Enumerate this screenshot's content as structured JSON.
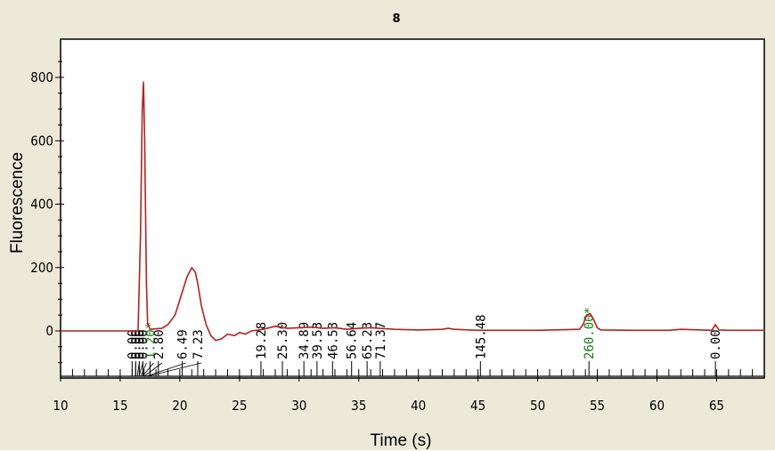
{
  "chart_data": {
    "type": "line",
    "title": "8",
    "xlabel": "Time (s)",
    "ylabel": "Fluorescence",
    "xlim": [
      10,
      69
    ],
    "ylim": [
      -150,
      900
    ],
    "x_ticks": [
      10,
      15,
      20,
      25,
      30,
      35,
      40,
      45,
      50,
      55,
      60,
      65
    ],
    "y_ticks": [
      0,
      200,
      400,
      600,
      800
    ],
    "grid": false,
    "line_color": "#b22222",
    "series": [
      {
        "x": [
          10,
          14.5,
          16.5,
          16.7,
          16.85,
          16.95,
          17.05,
          17.2,
          17.3,
          17.5,
          18.5,
          19.0,
          19.6,
          20.1,
          20.6,
          21.0,
          21.3,
          21.5,
          21.8,
          22.2,
          22.6,
          23.0,
          23.5,
          24.0,
          24.6,
          25.0,
          25.5,
          26.0,
          27.0,
          28.0,
          29.0,
          30.0,
          31.0,
          32.0,
          33.0,
          34.0,
          35.0,
          36.0,
          38.0,
          40.0,
          42.0,
          42.5,
          43.0,
          45.0,
          50.0,
          53.5,
          53.8,
          54.1,
          54.4,
          54.7,
          55.0,
          55.3,
          58.0,
          61.0,
          62.0,
          64.6,
          64.9,
          65.2,
          66.0,
          69.0
        ],
        "y": [
          0,
          0,
          0,
          300,
          700,
          785,
          600,
          150,
          25,
          5,
          8,
          20,
          50,
          110,
          170,
          200,
          185,
          150,
          80,
          20,
          -15,
          -30,
          -25,
          -10,
          -15,
          -5,
          -10,
          0,
          5,
          15,
          8,
          10,
          12,
          8,
          10,
          5,
          8,
          10,
          5,
          3,
          5,
          8,
          5,
          2,
          2,
          5,
          20,
          50,
          55,
          35,
          10,
          3,
          2,
          2,
          5,
          2,
          20,
          3,
          2,
          2
        ]
      }
    ],
    "annotations": [
      {
        "label": "0.00",
        "x": 16.0,
        "color": "#000000"
      },
      {
        "label": "0.00",
        "x": 16.3,
        "color": "#000000"
      },
      {
        "label": "0.00",
        "x": 16.6,
        "color": "#000000"
      },
      {
        "label": "0.00",
        "x": 16.9,
        "color": "#000000"
      },
      {
        "label": "1.20*",
        "x": 17.5,
        "color": "#1a7a1a"
      },
      {
        "label": "2.80",
        "x": 18.2,
        "color": "#000000"
      },
      {
        "label": "6.49",
        "x": 20.2,
        "color": "#000000"
      },
      {
        "label": "7.23",
        "x": 21.5,
        "color": "#000000"
      },
      {
        "label": "19.28",
        "x": 26.8,
        "color": "#000000"
      },
      {
        "label": "25.30",
        "x": 28.6,
        "color": "#000000"
      },
      {
        "label": "34.89",
        "x": 30.4,
        "color": "#000000"
      },
      {
        "label": "39.53",
        "x": 31.5,
        "color": "#000000"
      },
      {
        "label": "46.53",
        "x": 32.8,
        "color": "#000000"
      },
      {
        "label": "56.64",
        "x": 34.4,
        "color": "#000000"
      },
      {
        "label": "65.23",
        "x": 35.7,
        "color": "#000000"
      },
      {
        "label": "71.37",
        "x": 36.8,
        "color": "#000000"
      },
      {
        "label": "145.48",
        "x": 45.2,
        "color": "#000000"
      },
      {
        "label": "260.00*",
        "x": 54.3,
        "color": "#1a7a1a"
      },
      {
        "label": "0.00",
        "x": 64.9,
        "color": "#000000"
      }
    ]
  }
}
